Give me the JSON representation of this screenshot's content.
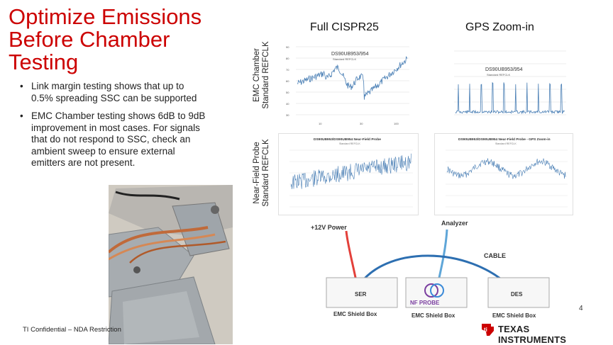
{
  "slide": {
    "title_line1": "Optimize Emissions",
    "title_line2": "Before Chamber",
    "title_line3": "Testing",
    "bullets": [
      {
        "line1": "Link margin testing shows that up to",
        "line2": "0.5% spreading SSC can be supported"
      },
      {
        "line1": "EMC Chamber testing shows 6dB to 9dB",
        "line2": "improvement in most cases.  For signals",
        "line3": "that do not respond to SSC, check an",
        "line4": "ambient sweep to ensure external",
        "line5": "emitters are not present."
      }
    ],
    "bullet_glyph": "•",
    "col1_title": "Full CISPR25",
    "col2_title": "GPS Zoom-in",
    "row1_label_l1": "EMC Chamber",
    "row1_label_l2": "Standard REFCLK",
    "row2_label_l1": "Near-Field Probe",
    "row2_label_l2": "Standard REFCLK",
    "footer": "TI Confidential – NDA Restriction",
    "page_number": "4",
    "logo_text": "Texas Instruments",
    "accent_color": "#cc0000",
    "plot_color": "#4a7fb5"
  },
  "charts": {
    "emc_full": {
      "label": "DS90UB953/954",
      "sublabel": "Standard REFCLK",
      "x_ticks": [
        "10",
        "30",
        "100"
      ]
    },
    "emc_gps": {
      "label": "DS90UB953/954",
      "sublabel": "Standard REFCLK"
    },
    "nf_full": {
      "title": "DS90UB953/DS90UB954 Near-Field Probe",
      "subtitle": "Standard REFCLK"
    },
    "nf_gps": {
      "title": "DS90UB953/DS90UB954 Near-Field Probe - GPS Zoom-in",
      "subtitle": "Standard REFCLK"
    }
  },
  "diagram": {
    "power": "+12V Power",
    "analyzer": "Analyzer",
    "cable": "CABLE",
    "ser": "SER",
    "probe": "NF PROBE",
    "des": "DES",
    "box1": "EMC Shield Box",
    "box2": "EMC Shield Box",
    "box3": "EMC Shield Box"
  }
}
